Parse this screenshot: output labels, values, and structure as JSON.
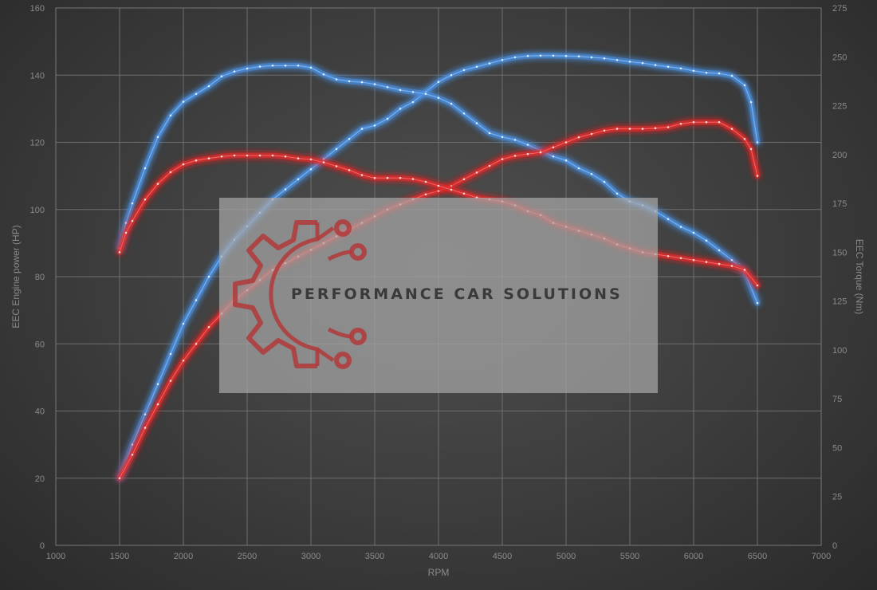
{
  "chart_data": {
    "type": "line",
    "xlabel": "RPM",
    "ylabel": "EEC Engine power (HP)",
    "y2label": "EEC Torque (Nm)",
    "xlim": [
      1000,
      7000
    ],
    "ylim": [
      0,
      160
    ],
    "y2lim": [
      0,
      275
    ],
    "x_ticks": [
      "1000",
      "1500",
      "2000",
      "2500",
      "3000",
      "3500",
      "4000",
      "4500",
      "5000",
      "5500",
      "6000",
      "6500",
      "7000"
    ],
    "y_ticks": [
      "0",
      "20",
      "40",
      "60",
      "80",
      "100",
      "120",
      "140",
      "160"
    ],
    "y2_ticks": [
      "0",
      "25",
      "50",
      "75",
      "100",
      "125",
      "150",
      "175",
      "200",
      "225",
      "250",
      "275"
    ],
    "grid": true,
    "series": [
      {
        "color": "#4a8fe0",
        "axis": "left",
        "kind": "power",
        "variant": "tuned",
        "x": [
          1500,
          1600,
          1700,
          1800,
          1900,
          2000,
          2100,
          2200,
          2300,
          2400,
          2500,
          2600,
          2700,
          2800,
          2900,
          3000,
          3100,
          3200,
          3300,
          3400,
          3500,
          3600,
          3700,
          3800,
          3900,
          4000,
          4100,
          4200,
          4300,
          4400,
          4500,
          4600,
          4700,
          4800,
          4900,
          5000,
          5100,
          5200,
          5300,
          5400,
          5500,
          5600,
          5700,
          5800,
          5900,
          6000,
          6100,
          6200,
          6300,
          6400,
          6450,
          6500
        ],
        "y": [
          20,
          30,
          39,
          48,
          57,
          66,
          73,
          80,
          86,
          91,
          95,
          99,
          103,
          106,
          109,
          112,
          115,
          118,
          121,
          124,
          125,
          127,
          130,
          132,
          135,
          138,
          140,
          141.5,
          142.5,
          143.5,
          144.5,
          145.3,
          145.7,
          145.8,
          145.8,
          145.7,
          145.6,
          145.3,
          145,
          144.5,
          144,
          143.6,
          143,
          142.5,
          142,
          141.3,
          140.7,
          140.5,
          139.8,
          137,
          132,
          120
        ]
      },
      {
        "color": "#4a8fe0",
        "axis": "right",
        "kind": "torque",
        "variant": "tuned",
        "x": [
          1500,
          1550,
          1600,
          1700,
          1800,
          1900,
          2000,
          2100,
          2200,
          2300,
          2400,
          2500,
          2600,
          2700,
          2800,
          2900,
          3000,
          3100,
          3200,
          3300,
          3400,
          3500,
          3600,
          3700,
          3800,
          3900,
          4000,
          4100,
          4200,
          4300,
          4400,
          4500,
          4600,
          4700,
          4800,
          4900,
          5000,
          5100,
          5200,
          5300,
          5400,
          5500,
          5600,
          5700,
          5800,
          5900,
          6000,
          6100,
          6200,
          6300,
          6400,
          6500
        ],
        "y": [
          152,
          165,
          175,
          193,
          209,
          220,
          227,
          231,
          235,
          240,
          242.5,
          244,
          245,
          245.5,
          245.5,
          245.5,
          244.5,
          241,
          238.5,
          237.5,
          237,
          236,
          234.5,
          233,
          232,
          231,
          229,
          226,
          221,
          216,
          211,
          209,
          207.5,
          205,
          202,
          199,
          197,
          193,
          190,
          186,
          180,
          176,
          174,
          171,
          167,
          163,
          160,
          156,
          151,
          146,
          140,
          124
        ]
      },
      {
        "color": "#e02a2a",
        "axis": "left",
        "kind": "power",
        "variant": "stock",
        "x": [
          1500,
          1600,
          1700,
          1800,
          1900,
          2000,
          2100,
          2200,
          2300,
          2400,
          2500,
          2600,
          2700,
          2800,
          2900,
          3000,
          3100,
          3200,
          3300,
          3400,
          3500,
          3600,
          3700,
          3800,
          3900,
          4000,
          4100,
          4200,
          4300,
          4400,
          4500,
          4600,
          4700,
          4800,
          4900,
          5000,
          5100,
          5200,
          5300,
          5400,
          5500,
          5600,
          5700,
          5800,
          5900,
          6000,
          6100,
          6200,
          6300,
          6400,
          6450,
          6500
        ],
        "y": [
          20,
          27,
          35,
          42,
          49,
          55,
          60,
          65,
          69,
          73,
          76,
          79,
          82,
          84,
          86,
          88,
          90,
          92,
          94,
          96,
          98,
          100,
          101.5,
          103,
          104.5,
          105.5,
          107,
          109,
          111,
          113,
          115,
          116,
          116.5,
          117,
          118.5,
          120,
          121.5,
          122.5,
          123.5,
          124,
          124,
          124,
          124.2,
          124.5,
          125.5,
          126,
          126,
          126,
          124,
          121,
          118,
          110
        ]
      },
      {
        "color": "#e02a2a",
        "axis": "right",
        "kind": "torque",
        "variant": "stock",
        "x": [
          1500,
          1550,
          1600,
          1700,
          1800,
          1900,
          2000,
          2100,
          2200,
          2300,
          2400,
          2500,
          2600,
          2700,
          2800,
          2900,
          3000,
          3100,
          3200,
          3300,
          3400,
          3500,
          3600,
          3700,
          3800,
          3900,
          4000,
          4100,
          4200,
          4300,
          4400,
          4500,
          4600,
          4700,
          4800,
          4900,
          5000,
          5100,
          5200,
          5300,
          5400,
          5500,
          5600,
          5700,
          5800,
          5900,
          6000,
          6100,
          6200,
          6300,
          6400,
          6500
        ],
        "y": [
          150,
          160,
          166,
          177,
          185,
          191,
          195,
          197,
          198,
          199,
          199.5,
          199.5,
          199.5,
          199.5,
          199,
          198,
          197.5,
          196,
          194,
          192,
          189.5,
          188,
          188,
          188,
          187.5,
          186,
          184,
          182,
          180,
          178,
          177,
          176,
          174,
          171,
          169,
          165,
          163,
          161,
          159,
          157,
          154,
          152,
          150,
          149,
          148,
          147,
          146,
          145,
          144,
          143,
          141,
          133
        ]
      }
    ]
  },
  "watermark": {
    "text": "PERFORMANCE CAR SOLUTIONS",
    "logo": "gear-circuit-logo",
    "logo_color": "#b23a3a",
    "panel_color": "#a6a6a6"
  }
}
